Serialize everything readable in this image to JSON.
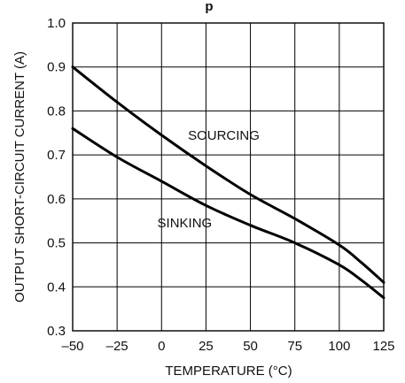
{
  "chart_data": {
    "type": "line",
    "title_fragment": "p",
    "xlabel": "TEMPERATURE (°C)",
    "ylabel": "OUTPUT SHORT-CIRCUIT CURRENT (A)",
    "xlim": [
      -50,
      125
    ],
    "ylim": [
      0.3,
      1.0
    ],
    "grid": true,
    "x_ticks": [
      -50,
      -25,
      0,
      25,
      50,
      75,
      100,
      125
    ],
    "x_tick_labels": [
      "–50",
      "–25",
      "0",
      "25",
      "50",
      "75",
      "100",
      "125"
    ],
    "y_ticks": [
      0.3,
      0.4,
      0.5,
      0.6,
      0.7,
      0.8,
      0.9,
      1.0
    ],
    "y_tick_labels": [
      "0.3",
      "0.4",
      "0.5",
      "0.6",
      "0.7",
      "0.8",
      "0.9",
      "1.0"
    ],
    "series": [
      {
        "name": "SOURCING",
        "label_at": [
          35,
          0.745
        ],
        "x": [
          -50,
          -25,
          0,
          25,
          50,
          75,
          100,
          112.5,
          125
        ],
        "y": [
          0.9,
          0.82,
          0.745,
          0.675,
          0.61,
          0.555,
          0.495,
          0.455,
          0.41
        ]
      },
      {
        "name": "SINKING",
        "label_at": [
          13,
          0.545
        ],
        "x": [
          -50,
          -25,
          0,
          25,
          50,
          75,
          100,
          112.5,
          125
        ],
        "y": [
          0.76,
          0.695,
          0.64,
          0.585,
          0.54,
          0.5,
          0.45,
          0.415,
          0.375
        ]
      }
    ]
  }
}
